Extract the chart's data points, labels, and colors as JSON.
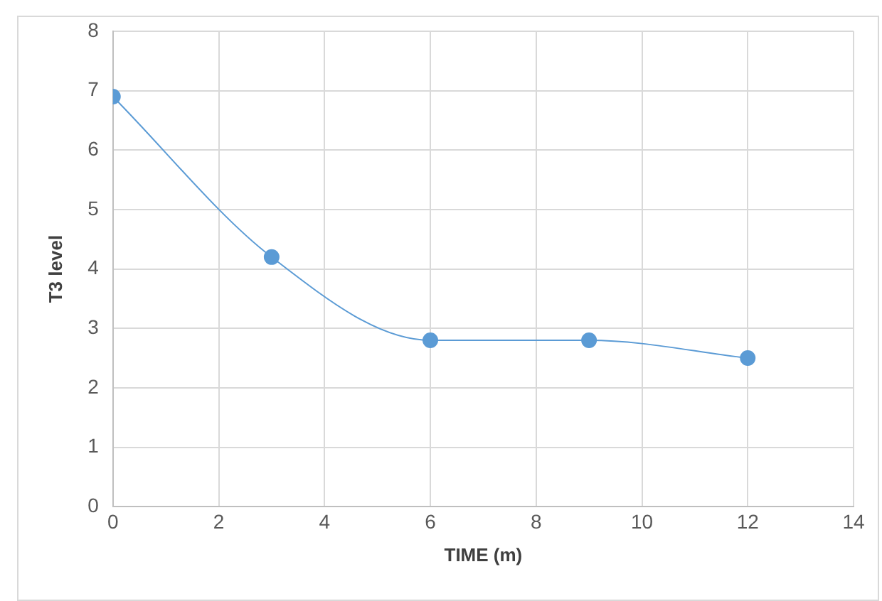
{
  "chart_data": {
    "type": "scatter",
    "xlabel": "TIME (m)",
    "ylabel": "T3 level",
    "x": [
      0,
      3,
      6,
      9,
      12
    ],
    "series": [
      {
        "type": "line",
        "color": "#5b9bd5",
        "values": [
          6.9,
          4.2,
          2.8,
          2.8,
          2.5
        ]
      }
    ],
    "xlim": [
      0,
      14
    ],
    "xticks": [
      0,
      2,
      4,
      6,
      8,
      10,
      12,
      14
    ],
    "ylim": [
      0,
      8
    ],
    "yticks": [
      0,
      1,
      2,
      3,
      4,
      5,
      6,
      7,
      8
    ],
    "grid": true,
    "legend": false,
    "marker": "circle"
  }
}
